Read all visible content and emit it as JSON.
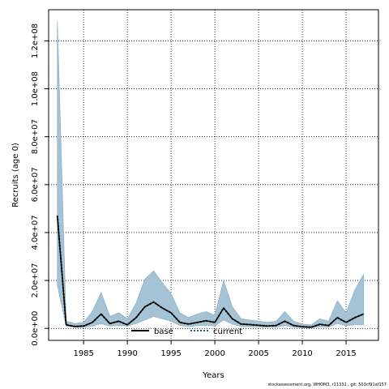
{
  "chart_data": {
    "type": "area",
    "xlabel": "Years",
    "ylabel": "Recruits (age 0)",
    "xlim": [
      1981,
      2018.7
    ],
    "ylim": [
      -5000000,
      133000000
    ],
    "xticks": [
      1985,
      1990,
      1995,
      2000,
      2005,
      2010,
      2015
    ],
    "xtick_labels": [
      "1985",
      "1990",
      "1995",
      "2000",
      "2005",
      "2010",
      "2015"
    ],
    "yticks": [
      0,
      20000000,
      40000000,
      60000000,
      80000000,
      100000000,
      120000000
    ],
    "ytick_labels": [
      "0.0e+00",
      "2.0e+07",
      "4.0e+07",
      "6.0e+07",
      "8.0e+07",
      "1.0e+08",
      "1.2e+08"
    ],
    "grid": true,
    "grid_style": "dotted",
    "legend_position": "bottom",
    "x": [
      1982,
      1983,
      1984,
      1985,
      1986,
      1987,
      1988,
      1989,
      1990,
      1991,
      1992,
      1993,
      1994,
      1995,
      1996,
      1997,
      1998,
      1999,
      2000,
      2001,
      2002,
      2003,
      2004,
      2005,
      2006,
      2007,
      2008,
      2009,
      2010,
      2011,
      2012,
      2013,
      2014,
      2015,
      2016,
      2017
    ],
    "band_upper": [
      128000000,
      3000000,
      2000000,
      2500000,
      7000000,
      15000000,
      5000000,
      6500000,
      4000000,
      10500000,
      20500000,
      24000000,
      19000000,
      14500000,
      6500000,
      4500000,
      6000000,
      7000000,
      5500000,
      20000000,
      9000000,
      4000000,
      3500000,
      3000000,
      2500000,
      3000000,
      7000000,
      3000000,
      1800000,
      1500000,
      4000000,
      3000000,
      11500000,
      6500000,
      16000000,
      22500000
    ],
    "band_lower": [
      18000000,
      1000000,
      500000,
      400000,
      1000000,
      2000000,
      1000000,
      1200000,
      1000000,
      2000000,
      3500000,
      5000000,
      4000000,
      3000000,
      1200000,
      800000,
      1200000,
      1300000,
      1000000,
      3500000,
      1800000,
      800000,
      700000,
      600000,
      500000,
      500000,
      1200000,
      500000,
      300000,
      200000,
      700000,
      500000,
      2000000,
      1200000,
      1500000,
      1500000
    ],
    "series": [
      {
        "name": "base",
        "values": [
          47000000,
          1500000,
          800000,
          1000000,
          2500000,
          6000000,
          2000000,
          3000000,
          1500000,
          4500000,
          9000000,
          11000000,
          8500000,
          6500000,
          2500000,
          1800000,
          2500000,
          3200000,
          2500000,
          8500000,
          4000000,
          1800000,
          1600000,
          1300000,
          1000000,
          1200000,
          3000000,
          1200000,
          700000,
          500000,
          1700000,
          1200000,
          4500000,
          2500000,
          4500000,
          6000000
        ],
        "line": "solid",
        "color": "#000000"
      },
      {
        "name": "current",
        "values": [
          47000000,
          1500000,
          800000,
          1000000,
          2500000,
          6000000,
          2000000,
          3000000,
          1500000,
          4500000,
          9000000,
          11000000,
          8500000,
          6500000,
          2500000,
          1800000,
          2500000,
          3200000,
          2500000,
          8500000,
          4000000,
          1800000,
          1600000,
          1300000,
          1000000,
          1200000,
          3000000,
          1200000,
          700000,
          500000,
          1700000,
          1200000,
          4500000,
          2500000,
          4500000,
          6000000
        ],
        "line": "dotted",
        "color": "#000000",
        "legend_color": "#1f5f8b"
      }
    ],
    "band_color": "#a5c3d4",
    "band_edge_color": "#8fb3c7"
  },
  "footer": "stockassessment.org, WHOM3, r11332 , git: 503cf91af157"
}
